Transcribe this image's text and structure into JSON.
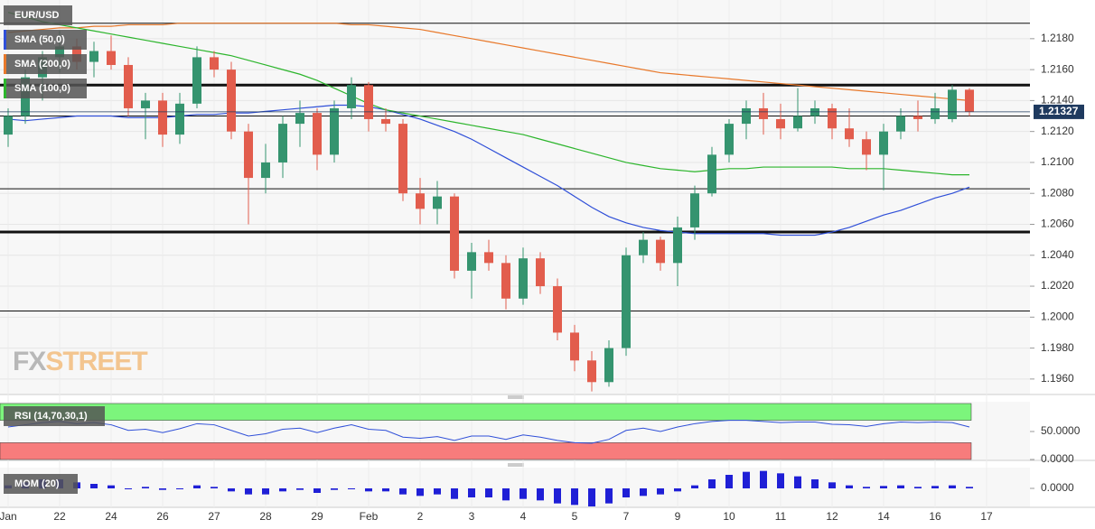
{
  "chart_data": [
    {
      "type": "candlestick",
      "title": "EUR/USD",
      "watermark": [
        "FX",
        "STREET"
      ],
      "up_color": "#35946f",
      "down_color": "#e25d4d",
      "ohlc": [
        [
          1.2118,
          1.2135,
          1.211,
          1.213
        ],
        [
          1.213,
          1.216,
          1.2125,
          1.2155
        ],
        [
          1.2155,
          1.2172,
          1.214,
          1.2168
        ],
        [
          1.2168,
          1.2185,
          1.2158,
          1.2175
        ],
        [
          1.2175,
          1.218,
          1.216,
          1.2165
        ],
        [
          1.2165,
          1.2178,
          1.2155,
          1.2172
        ],
        [
          1.2172,
          1.2182,
          1.216,
          1.2163
        ],
        [
          1.2163,
          1.2168,
          1.213,
          1.2135
        ],
        [
          1.2135,
          1.2145,
          1.2115,
          1.214
        ],
        [
          1.214,
          1.2145,
          1.211,
          1.2118
        ],
        [
          1.2118,
          1.2145,
          1.2112,
          1.2138
        ],
        [
          1.2138,
          1.2175,
          1.2135,
          1.2168
        ],
        [
          1.2168,
          1.2172,
          1.2155,
          1.216
        ],
        [
          1.216,
          1.2165,
          1.2115,
          1.212
        ],
        [
          1.212,
          1.2125,
          1.206,
          1.209
        ],
        [
          1.209,
          1.2112,
          1.208,
          1.21
        ],
        [
          1.21,
          1.213,
          1.209,
          1.2125
        ],
        [
          1.2125,
          1.214,
          1.211,
          1.2132
        ],
        [
          1.2132,
          1.2135,
          1.2095,
          1.2105
        ],
        [
          1.2105,
          1.214,
          1.21,
          1.2135
        ],
        [
          1.2135,
          1.2155,
          1.2128,
          1.215
        ],
        [
          1.215,
          1.2152,
          1.212,
          1.2128
        ],
        [
          1.2128,
          1.2135,
          1.212,
          1.2125
        ],
        [
          1.2125,
          1.2128,
          1.2075,
          1.208
        ],
        [
          1.208,
          1.209,
          1.206,
          1.207
        ],
        [
          1.207,
          1.2088,
          1.206,
          1.2078
        ],
        [
          1.2078,
          1.208,
          1.2025,
          1.203
        ],
        [
          1.203,
          1.2048,
          1.2012,
          1.2042
        ],
        [
          1.2042,
          1.205,
          1.203,
          1.2035
        ],
        [
          1.2035,
          1.204,
          1.2005,
          1.2012
        ],
        [
          1.2012,
          1.2045,
          1.2008,
          1.2038
        ],
        [
          1.2038,
          1.2042,
          1.2015,
          1.202
        ],
        [
          1.202,
          1.2025,
          1.1985,
          1.199
        ],
        [
          1.199,
          1.1995,
          1.1965,
          1.1972
        ],
        [
          1.1972,
          1.1978,
          1.1952,
          1.1958
        ],
        [
          1.1958,
          1.1985,
          1.1955,
          1.198
        ],
        [
          1.198,
          1.2045,
          1.1975,
          1.204
        ],
        [
          1.204,
          1.2055,
          1.2035,
          1.205
        ],
        [
          1.205,
          1.2052,
          1.203,
          1.2035
        ],
        [
          1.2035,
          1.2065,
          1.202,
          1.2058
        ],
        [
          1.2058,
          1.2085,
          1.205,
          1.208
        ],
        [
          1.208,
          1.211,
          1.2078,
          1.2105
        ],
        [
          1.2105,
          1.2128,
          1.21,
          1.2125
        ],
        [
          1.2125,
          1.214,
          1.2115,
          1.2135
        ],
        [
          1.2135,
          1.2145,
          1.2118,
          1.2128
        ],
        [
          1.2128,
          1.2138,
          1.2115,
          1.2122
        ],
        [
          1.2122,
          1.2148,
          1.212,
          1.213
        ],
        [
          1.213,
          1.214,
          1.2125,
          1.2135
        ],
        [
          1.2135,
          1.2138,
          1.2115,
          1.2122
        ],
        [
          1.2122,
          1.2135,
          1.211,
          1.2115
        ],
        [
          1.2115,
          1.212,
          1.2095,
          1.2105
        ],
        [
          1.2105,
          1.2125,
          1.2082,
          1.212
        ],
        [
          1.212,
          1.2135,
          1.2115,
          1.213
        ],
        [
          1.213,
          1.214,
          1.212,
          1.2128
        ],
        [
          1.2128,
          1.2145,
          1.2125,
          1.2135
        ],
        [
          1.2128,
          1.215,
          1.2126,
          1.2147
        ],
        [
          1.2147,
          1.2148,
          1.213,
          1.21327
        ]
      ],
      "series": [
        {
          "name": "SMA (50,0)",
          "color": "#2f4fd8",
          "values": [
            1.2128,
            1.2127,
            1.2128,
            1.2129,
            1.213,
            1.213,
            1.213,
            1.2129,
            1.2129,
            1.2129,
            1.213,
            1.2131,
            1.2131,
            1.2132,
            1.2132,
            1.2133,
            1.2134,
            1.2135,
            1.2136,
            1.2137,
            1.2137,
            1.2136,
            1.2134,
            1.2131,
            1.2128,
            1.2124,
            1.212,
            1.2115,
            1.2109,
            1.2103,
            1.2097,
            1.2091,
            1.2085,
            1.2078,
            1.2071,
            1.2065,
            1.2061,
            1.2058,
            1.2056,
            1.2055,
            1.2054,
            1.2054,
            1.2054,
            1.2054,
            1.2054,
            1.2053,
            1.2053,
            1.2053,
            1.2055,
            1.2058,
            1.2062,
            1.2066,
            1.2069,
            1.2073,
            1.2077,
            1.208,
            1.2084
          ]
        },
        {
          "name": "SMA (200,0)",
          "color": "#e8782a",
          "values": [
            1.2184,
            1.2185,
            1.2186,
            1.2187,
            1.2187,
            1.2188,
            1.2188,
            1.2189,
            1.2189,
            1.2189,
            1.219,
            1.219,
            1.219,
            1.219,
            1.219,
            1.219,
            1.219,
            1.219,
            1.219,
            1.219,
            1.2189,
            1.2189,
            1.2188,
            1.2187,
            1.2186,
            1.2184,
            1.2182,
            1.218,
            1.2178,
            1.2176,
            1.2174,
            1.2172,
            1.217,
            1.2168,
            1.2166,
            1.2164,
            1.2162,
            1.216,
            1.2158,
            1.2157,
            1.2156,
            1.2155,
            1.2154,
            1.2153,
            1.2152,
            1.2151,
            1.215,
            1.2149,
            1.2148,
            1.2147,
            1.2146,
            1.2145,
            1.2144,
            1.2143,
            1.2142,
            1.2141,
            1.214
          ]
        },
        {
          "name": "SMA (100,0)",
          "color": "#2cb52c",
          "values": [
            1.2197,
            1.2194,
            1.2191,
            1.2189,
            1.2187,
            1.2185,
            1.2183,
            1.2181,
            1.2179,
            1.2177,
            1.2175,
            1.2173,
            1.2171,
            1.2169,
            1.2166,
            1.2163,
            1.216,
            1.2157,
            1.2153,
            1.2148,
            1.2143,
            1.2138,
            1.2134,
            1.2132,
            1.213,
            1.2128,
            1.2126,
            1.2124,
            1.2122,
            1.212,
            1.2118,
            1.2115,
            1.2112,
            1.2109,
            1.2106,
            1.2103,
            1.21,
            1.2098,
            1.2096,
            1.2095,
            1.2094,
            1.2095,
            1.2096,
            1.2096,
            1.2097,
            1.2097,
            1.2097,
            1.2097,
            1.2097,
            1.2096,
            1.2096,
            1.2096,
            1.2095,
            1.2094,
            1.2093,
            1.2092,
            1.2092
          ]
        }
      ],
      "levels": [
        {
          "value": 1.219,
          "width": 1
        },
        {
          "value": 1.215,
          "width": 3
        },
        {
          "value": 1.213,
          "width": 1
        },
        {
          "value": 1.2083,
          "width": 1
        },
        {
          "value": 1.2055,
          "width": 3
        },
        {
          "value": 1.2004,
          "width": 1
        }
      ],
      "last_price": 1.21327,
      "ylim": [
        1.195,
        1.2205
      ],
      "yticks": [
        {
          "value": 1.196,
          "label": "1.1960"
        },
        {
          "value": 1.198,
          "label": "1.1980"
        },
        {
          "value": 1.2,
          "label": "1.2000"
        },
        {
          "value": 1.202,
          "label": "1.2020"
        },
        {
          "value": 1.204,
          "label": "1.2040"
        },
        {
          "value": 1.206,
          "label": "1.2060"
        },
        {
          "value": 1.208,
          "label": "1.2080"
        },
        {
          "value": 1.21,
          "label": "1.2100"
        },
        {
          "value": 1.212,
          "label": "1.2120"
        },
        {
          "value": 1.214,
          "label": "1.2140"
        },
        {
          "value": 1.216,
          "label": "1.2160"
        },
        {
          "value": 1.218,
          "label": "1.2180"
        }
      ],
      "x_labels": [
        "Jan",
        "22",
        "24",
        "26",
        "27",
        "28",
        "29",
        "Feb",
        "2",
        "3",
        "4",
        "5",
        "7",
        "9",
        "10",
        "11",
        "12",
        "14",
        "16",
        "17"
      ],
      "grid": true
    },
    {
      "type": "line",
      "title": "RSI (14,70,30,1)",
      "color": "#2f4fd8",
      "upper": 70,
      "lower": 30,
      "values": [
        58,
        62,
        66,
        68,
        64,
        66,
        62,
        52,
        54,
        48,
        55,
        64,
        62,
        52,
        42,
        46,
        54,
        56,
        48,
        56,
        62,
        54,
        52,
        40,
        38,
        41,
        34,
        42,
        42,
        36,
        44,
        40,
        34,
        30,
        29,
        36,
        52,
        56,
        50,
        58,
        64,
        68,
        70,
        70,
        68,
        66,
        67,
        67,
        63,
        62,
        59,
        64,
        67,
        66,
        67,
        66,
        58
      ],
      "ylim": [
        0,
        100
      ],
      "yticks": [
        {
          "value": 0,
          "label": "0.0000"
        },
        {
          "value": 50,
          "label": "50.0000"
        }
      ]
    },
    {
      "type": "bar",
      "title": "MOM (20)",
      "color": "#1f1fd6",
      "values": [
        0.001,
        0.002,
        0.003,
        0.003,
        0.002,
        0.0015,
        0.001,
        0.0,
        0.0005,
        -0.0005,
        0.0,
        0.001,
        0.0005,
        -0.001,
        -0.002,
        -0.002,
        -0.001,
        -0.0005,
        -0.0015,
        -0.0005,
        0.0,
        -0.001,
        -0.001,
        -0.002,
        -0.0025,
        -0.002,
        -0.0035,
        -0.003,
        -0.003,
        -0.004,
        -0.0035,
        -0.004,
        -0.005,
        -0.0055,
        -0.006,
        -0.005,
        -0.003,
        -0.0025,
        -0.002,
        -0.001,
        0.001,
        0.003,
        0.0045,
        0.0055,
        0.0058,
        0.005,
        0.004,
        0.003,
        0.002,
        0.001,
        0.0005,
        0.0008,
        0.001,
        0.0005,
        0.0008,
        0.001,
        0.0005
      ],
      "ylim": [
        -0.006,
        0.006
      ],
      "yticks": [
        {
          "value": 0,
          "label": "0.0000"
        }
      ]
    }
  ]
}
